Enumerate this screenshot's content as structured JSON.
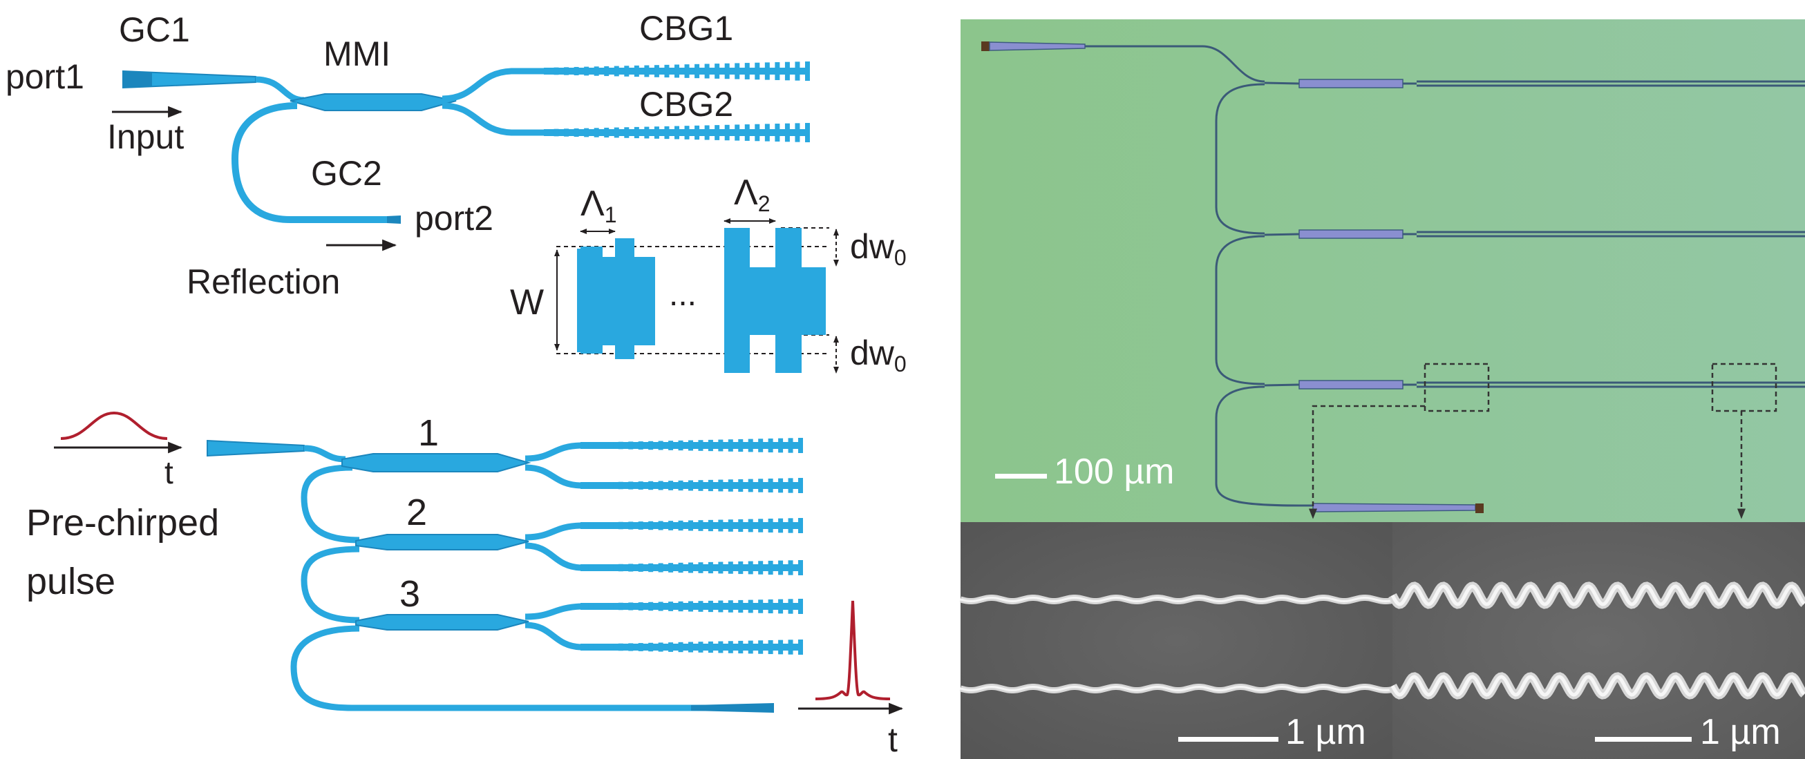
{
  "schematic": {
    "gc1": "GC1",
    "mmi": "MMI",
    "cbg1": "CBG1",
    "cbg2": "CBG2",
    "port1": "port1",
    "input": "Input",
    "gc2": "GC2",
    "port2": "port2",
    "reflection": "Reflection"
  },
  "grating_detail": {
    "lambda1": "Λ",
    "lambda1_sub": "1",
    "lambda2": "Λ",
    "lambda2_sub": "2",
    "width_label": "W",
    "ellipsis": "...",
    "dw_top": "dw",
    "dw_top_sub": "0",
    "dw_bottom": "dw",
    "dw_bottom_sub": "0"
  },
  "cascade": {
    "stage1": "1",
    "stage2": "2",
    "stage3": "3",
    "input_time_axis": "t",
    "input_line1": "Pre-chirped",
    "input_line2": "pulse",
    "output_time_axis": "t"
  },
  "micrograph": {
    "scale_bar": "100 µm"
  },
  "sem": {
    "left_scale_bar": "1 µm",
    "right_scale_bar": "1 µm"
  },
  "colors": {
    "waveguide": "#29a8df",
    "waveguide_dark": "#1b86bd",
    "pulse": "#b01f2e",
    "text": "#231f20",
    "micrograph_bg": "#8fc48f",
    "sem_bg": "#5c5c5c"
  }
}
